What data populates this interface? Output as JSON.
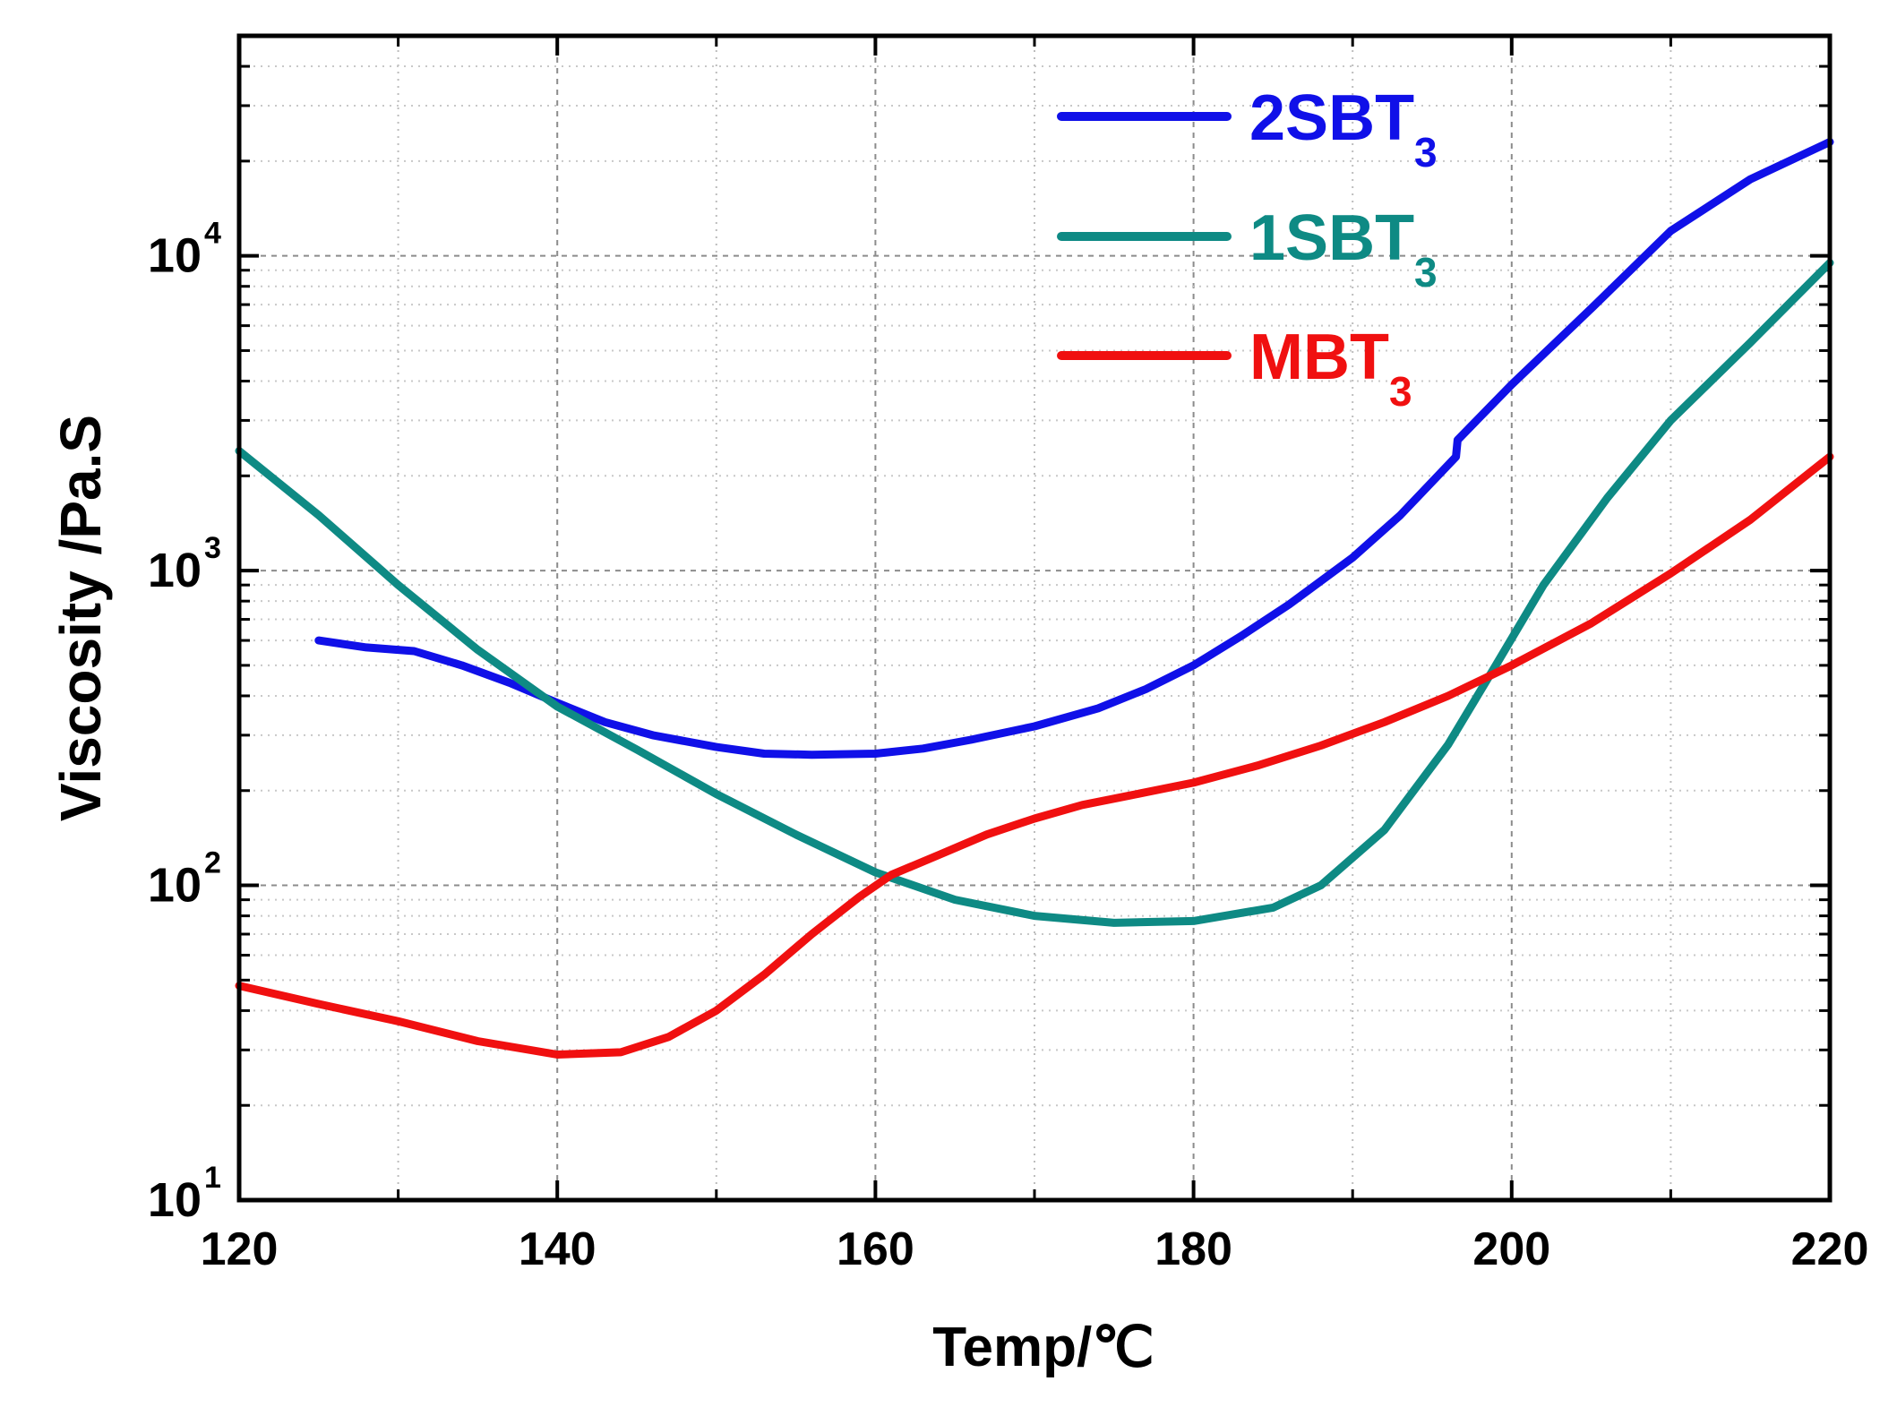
{
  "chart_data": {
    "type": "line",
    "title": "",
    "xlabel": "Temp/℃",
    "ylabel": "Viscosity /Pa.S",
    "xlim": [
      120,
      220
    ],
    "ylim": [
      10,
      50000
    ],
    "yscale": "log",
    "grid": true,
    "legend_position": "top-right",
    "x_ticks": [
      120,
      140,
      160,
      180,
      200,
      220
    ],
    "x_tick_labels": [
      "120",
      "140",
      "160",
      "180",
      "200",
      "220"
    ],
    "y_ticks": [
      10,
      100,
      1000,
      10000
    ],
    "y_tick_labels": [
      {
        "base": "10",
        "exp": "1"
      },
      {
        "base": "10",
        "exp": "2"
      },
      {
        "base": "10",
        "exp": "3"
      },
      {
        "base": "10",
        "exp": "4"
      }
    ],
    "series": [
      {
        "name": "2SBT",
        "subscript": "3",
        "color": "#1010e8",
        "points": [
          [
            125,
            600
          ],
          [
            128,
            570
          ],
          [
            131,
            555
          ],
          [
            134,
            500
          ],
          [
            137,
            440
          ],
          [
            140,
            380
          ],
          [
            143,
            330
          ],
          [
            146,
            300
          ],
          [
            150,
            275
          ],
          [
            153,
            262
          ],
          [
            156,
            260
          ],
          [
            160,
            262
          ],
          [
            163,
            272
          ],
          [
            166,
            290
          ],
          [
            170,
            320
          ],
          [
            174,
            365
          ],
          [
            177,
            420
          ],
          [
            180,
            500
          ],
          [
            183,
            620
          ],
          [
            186,
            780
          ],
          [
            190,
            1100
          ],
          [
            193,
            1500
          ],
          [
            196.5,
            2300
          ],
          [
            196.6,
            2600
          ],
          [
            200,
            3900
          ],
          [
            205,
            6800
          ],
          [
            210,
            12000
          ],
          [
            215,
            17500
          ],
          [
            220,
            23000
          ]
        ]
      },
      {
        "name": "1SBT",
        "subscript": "3",
        "color": "#0e8a84",
        "points": [
          [
            120,
            2400
          ],
          [
            125,
            1500
          ],
          [
            130,
            900
          ],
          [
            135,
            560
          ],
          [
            140,
            370
          ],
          [
            145,
            270
          ],
          [
            150,
            195
          ],
          [
            155,
            145
          ],
          [
            160,
            110
          ],
          [
            165,
            90
          ],
          [
            170,
            80
          ],
          [
            175,
            76
          ],
          [
            180,
            77
          ],
          [
            185,
            85
          ],
          [
            188,
            100
          ],
          [
            192,
            150
          ],
          [
            196,
            280
          ],
          [
            199,
            500
          ],
          [
            202,
            900
          ],
          [
            206,
            1700
          ],
          [
            210,
            3000
          ],
          [
            215,
            5300
          ],
          [
            220,
            9500
          ]
        ]
      },
      {
        "name": "MBT",
        "subscript": "3",
        "color": "#f01010",
        "points": [
          [
            120,
            48
          ],
          [
            125,
            42
          ],
          [
            130,
            37
          ],
          [
            135,
            32
          ],
          [
            140,
            29
          ],
          [
            144,
            29.5
          ],
          [
            147,
            33
          ],
          [
            150,
            40
          ],
          [
            153,
            52
          ],
          [
            156,
            70
          ],
          [
            159,
            92
          ],
          [
            161,
            108
          ],
          [
            164,
            125
          ],
          [
            167,
            145
          ],
          [
            170,
            163
          ],
          [
            173,
            180
          ],
          [
            176,
            193
          ],
          [
            180,
            212
          ],
          [
            184,
            240
          ],
          [
            188,
            278
          ],
          [
            192,
            330
          ],
          [
            196,
            400
          ],
          [
            200,
            500
          ],
          [
            205,
            680
          ],
          [
            210,
            980
          ],
          [
            215,
            1450
          ],
          [
            220,
            2300
          ]
        ]
      }
    ]
  }
}
